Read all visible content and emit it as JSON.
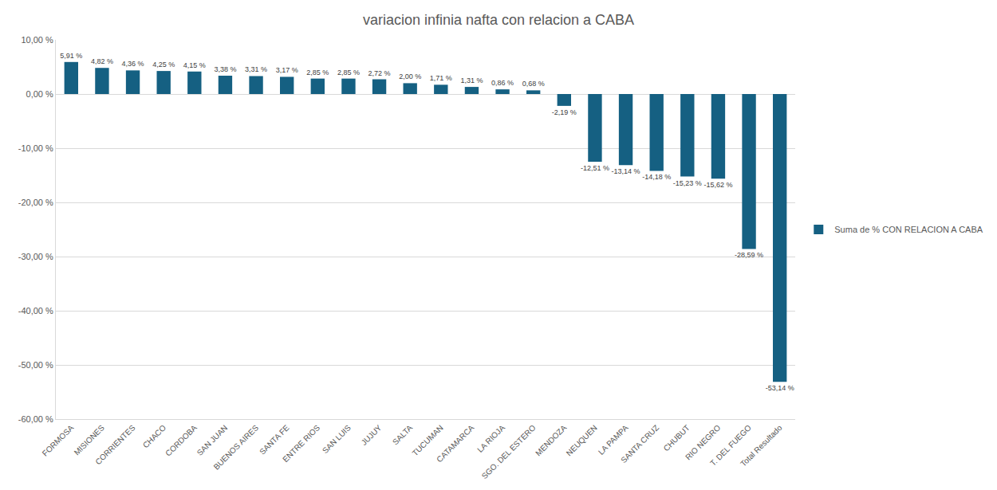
{
  "chart_data": {
    "type": "bar",
    "title": "variacion infinia nafta con relacion a CABA",
    "categories": [
      "FORMOSA",
      "MISIONES",
      "CORRIENTES",
      "CHACO",
      "CORDOBA",
      "SAN JUAN",
      "BUENOS AIRES",
      "SANTA FE",
      "ENTRE RIOS",
      "SAN LUIS",
      "JUJUY",
      "SALTA",
      "TUCUMAN",
      "CATAMARCA",
      "LA RIOJA",
      "SGO. DEL ESTERO",
      "MENDOZA",
      "NEUQUEN",
      "LA PAMPA",
      "SANTA CRUZ",
      "CHUBUT",
      "RIO NEGRO",
      "T. DEL FUEGO",
      "Total Resultado"
    ],
    "series": [
      {
        "name": "Suma de % CON RELACION A CABA",
        "color": "#156082",
        "values": [
          5.91,
          4.82,
          4.36,
          4.25,
          4.15,
          3.38,
          3.31,
          3.17,
          2.85,
          2.85,
          2.72,
          2.0,
          1.71,
          1.31,
          0.86,
          0.68,
          -2.19,
          -12.51,
          -13.14,
          -14.18,
          -15.23,
          -15.62,
          -28.59,
          -53.14
        ],
        "value_labels": [
          "5,91 %",
          "4,82 %",
          "4,36 %",
          "4,25 %",
          "4,15 %",
          "3,38 %",
          "3,31 %",
          "3,17 %",
          "2,85 %",
          "2,85 %",
          "2,72 %",
          "2,00 %",
          "1,71 %",
          "1,31 %",
          "0,86 %",
          "0,68 %",
          "-2,19 %",
          "-12,51 %",
          "-13,14 %",
          "-14,18 %",
          "-15,23 %",
          "-15,62 %",
          "-28,59 %",
          "-53,14 %"
        ]
      }
    ],
    "ylim": [
      -60,
      10
    ],
    "yticks": [
      {
        "value": -60,
        "label": "-60,00 %"
      },
      {
        "value": -50,
        "label": "-50,00 %"
      },
      {
        "value": -40,
        "label": "-40,00 %"
      },
      {
        "value": -30,
        "label": "-30,00 %"
      },
      {
        "value": -20,
        "label": "-20,00 %"
      },
      {
        "value": -10,
        "label": "-10,00 %"
      },
      {
        "value": 0,
        "label": "0,00 %"
      },
      {
        "value": 10,
        "label": "10,00 %"
      }
    ],
    "grid": true,
    "legend": "right",
    "data_labels": true
  }
}
